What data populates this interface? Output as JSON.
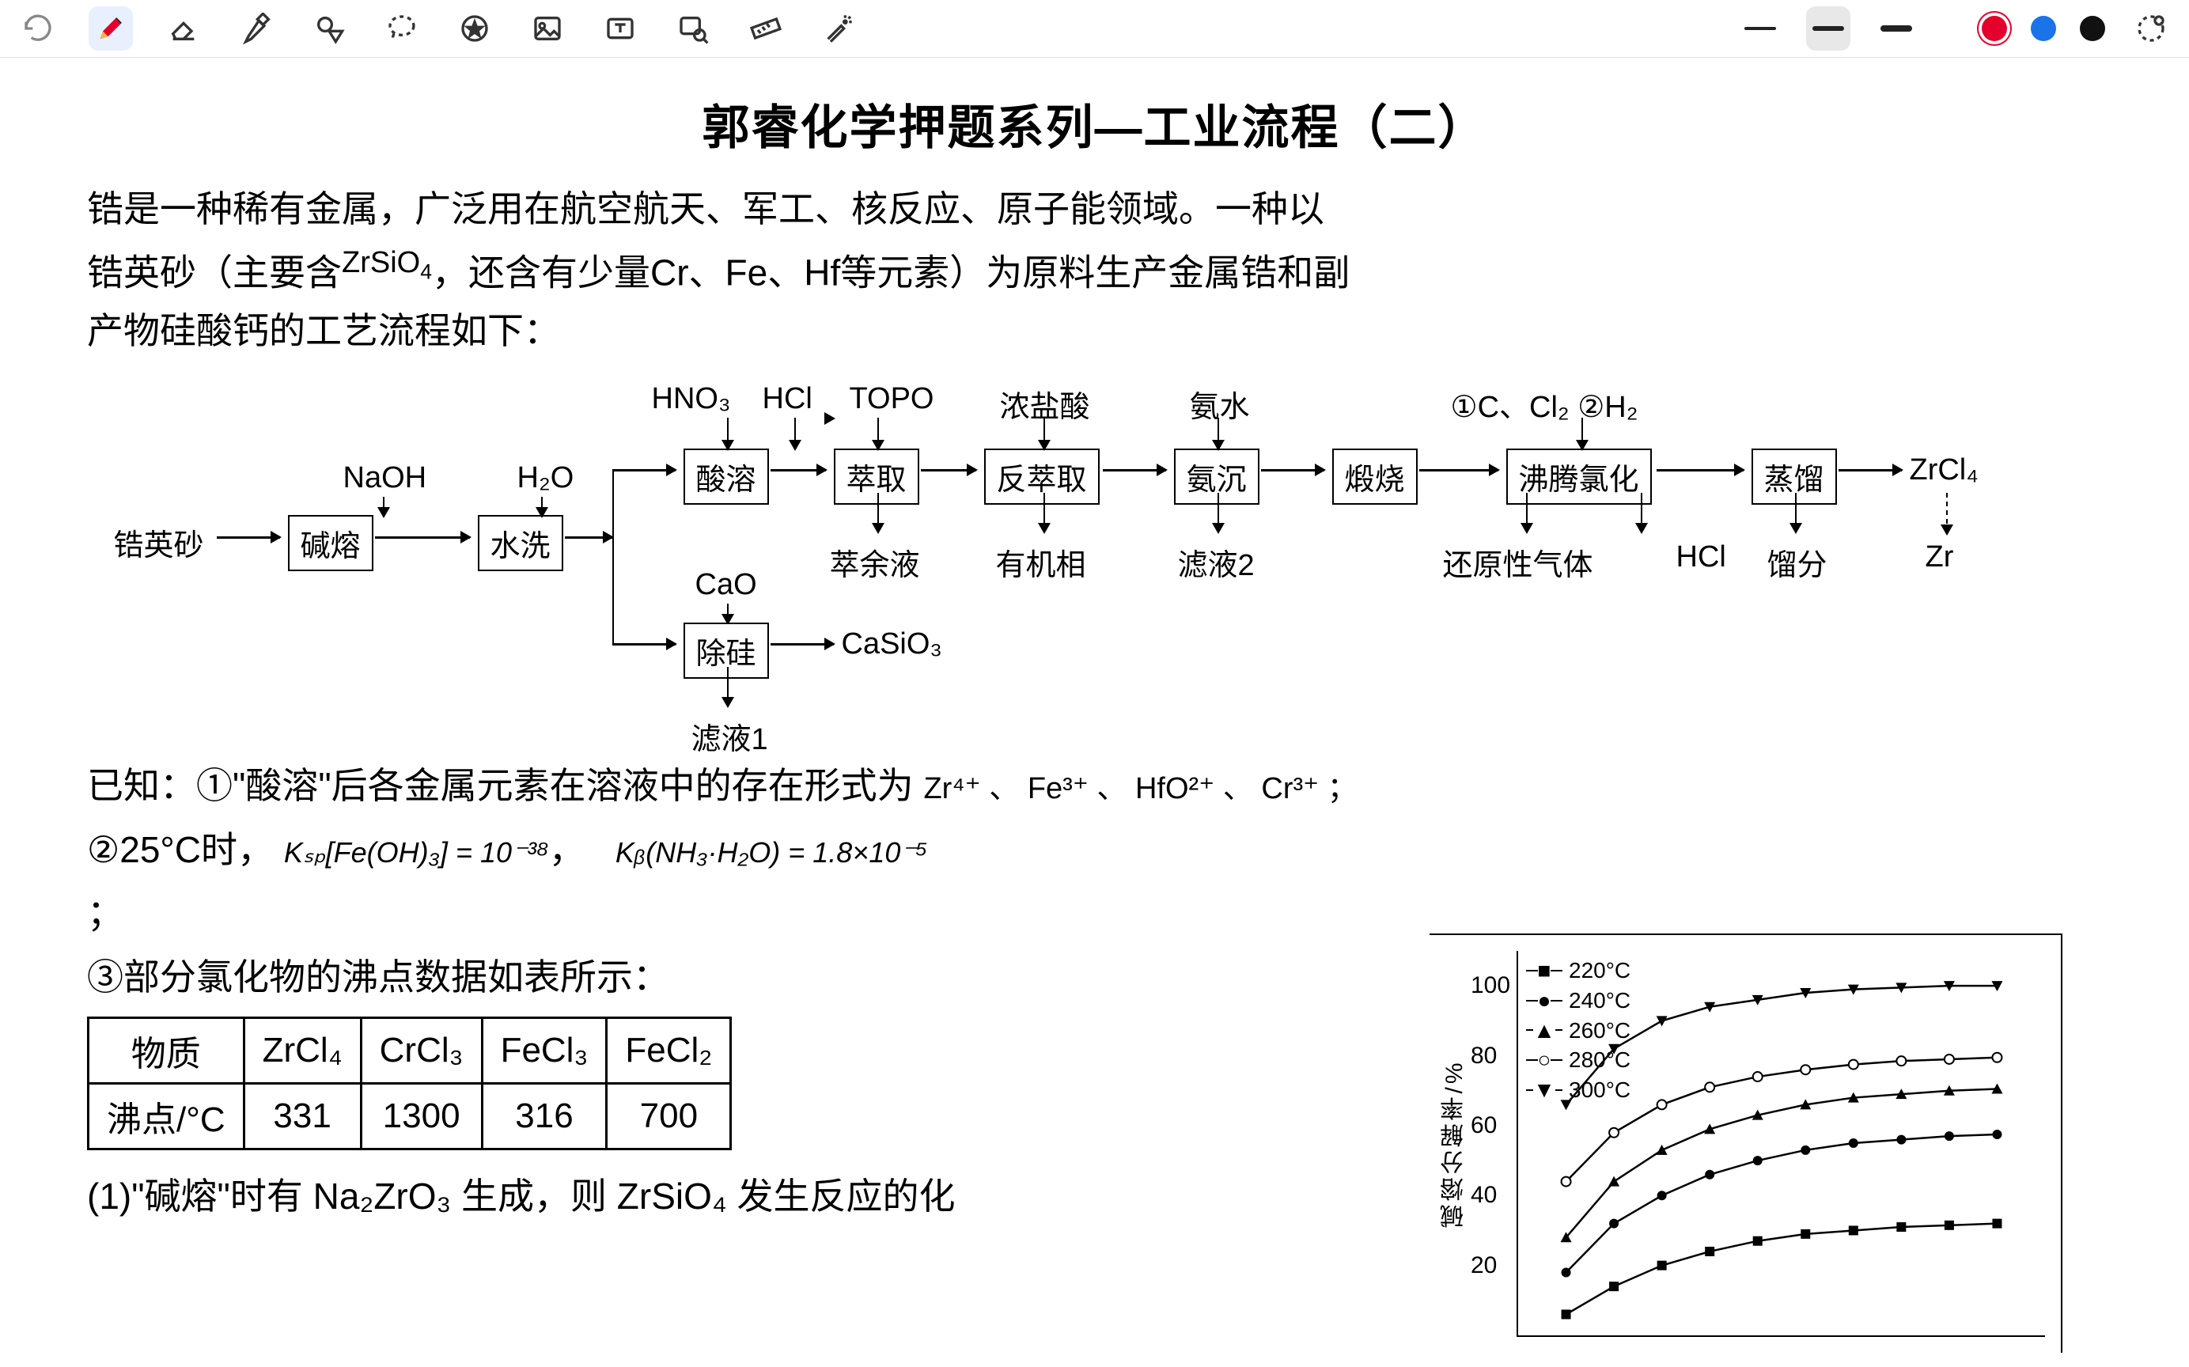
{
  "toolbar": {
    "undo": "undo",
    "pen": "pen",
    "eraser": "eraser",
    "highlighter": "highlighter",
    "shape": "shape",
    "lasso": "lasso",
    "favorites": "favorites",
    "image": "image",
    "text": "text",
    "insert_image": "insert-image",
    "ruler": "ruler",
    "laser": "laser",
    "thickness": [
      4,
      6,
      8
    ],
    "active_thickness_index": 1,
    "colors": [
      "#e4002b",
      "#1a73e8",
      "#111111"
    ],
    "add_color": "add-color"
  },
  "doc": {
    "title": "郭睿化学押题系列—工业流程（二）",
    "intro_1": "锆是一种稀有金属，广泛用在航空航天、军工、核反应、原子能领域。一种以",
    "intro_2a": "锆英砂（主要含",
    "intro_formula": "ZrSiO",
    "intro_sub": "4",
    "intro_2b": "，还含有少量Cr、Fe、Hf等元素）为原料生产金属锆和副",
    "intro_3": "产物硅酸钙的工艺流程如下：",
    "flow": {
      "start": "锆英砂",
      "naoh": "NaOH",
      "h2o": "H₂O",
      "b1": "碱熔",
      "b2": "水洗",
      "hno3": "HNO₃",
      "hcl": "HCl",
      "topo": "TOPO",
      "conc_hcl": "浓盐酸",
      "nh3": "氨水",
      "c_cl2_h2": "①C、Cl₂ ②H₂",
      "b3": "酸溶",
      "b4": "萃取",
      "b5": "反萃取",
      "b6": "氨沉",
      "b7": "煅烧",
      "b8": "沸腾氯化",
      "b9": "蒸馏",
      "zrcl4": "ZrCl₄",
      "zr": "Zr",
      "cao": "CaO",
      "b10": "除硅",
      "casio3": "CaSiO₃",
      "filtrate1": "滤液1",
      "residue": "萃余液",
      "organic": "有机相",
      "filtrate2": "滤液2",
      "reducing_gas": "还原性气体",
      "hcl_out": "HCl",
      "distillate": "馏分"
    },
    "known_label": "已知：",
    "k1a": "①\"酸溶\"后各金属元素在溶液中的存在形式为",
    "k1b": "Zr⁴⁺ 、 Fe³⁺ 、 HfO²⁺ 、 Cr³⁺ ；",
    "k2a": "②25°C时，",
    "ksp_expr": "Kₛₚ[Fe(OH)₃] = 10⁻³⁸",
    "kb_expr": "Kᵦ(NH₃·H₂O) = 1.8×10⁻⁵",
    "semicolon": "；",
    "k3": "③部分氯化物的沸点数据如表所示：",
    "table": {
      "h1": "物质",
      "h2": "ZrCl₄",
      "h3": "CrCl₃",
      "h4": "FeCl₃",
      "h5": "FeCl₂",
      "r1": "沸点/°C",
      "v1": "331",
      "v2": "1300",
      "v3": "316",
      "v4": "700"
    },
    "q1_partial": "(1)\"碱熔\"时有 Na₂ZrO₃ 生成，则 ZrSiO₄ 发生反应的化"
  },
  "chart": {
    "y_label": "碱熔分解率/%",
    "y_ticks": [
      20,
      40,
      60,
      80,
      100
    ],
    "ylim": [
      0,
      110
    ],
    "series": [
      {
        "label": "220°C",
        "marker": "■",
        "data": [
          [
            1,
            6
          ],
          [
            2,
            14
          ],
          [
            3,
            20
          ],
          [
            4,
            24
          ],
          [
            5,
            27
          ],
          [
            6,
            29
          ],
          [
            7,
            30
          ],
          [
            8,
            31
          ],
          [
            9,
            31.5
          ],
          [
            10,
            32
          ]
        ]
      },
      {
        "label": "240°C",
        "marker": "●",
        "data": [
          [
            1,
            18
          ],
          [
            2,
            32
          ],
          [
            3,
            40
          ],
          [
            4,
            46
          ],
          [
            5,
            50
          ],
          [
            6,
            53
          ],
          [
            7,
            55
          ],
          [
            8,
            56
          ],
          [
            9,
            57
          ],
          [
            10,
            57.5
          ]
        ]
      },
      {
        "label": "260°C",
        "marker": "▲",
        "data": [
          [
            1,
            28
          ],
          [
            2,
            44
          ],
          [
            3,
            53
          ],
          [
            4,
            59
          ],
          [
            5,
            63
          ],
          [
            6,
            66
          ],
          [
            7,
            68
          ],
          [
            8,
            69
          ],
          [
            9,
            70
          ],
          [
            10,
            70.5
          ]
        ]
      },
      {
        "label": "280°C",
        "marker": "○",
        "data": [
          [
            1,
            44
          ],
          [
            2,
            58
          ],
          [
            3,
            66
          ],
          [
            4,
            71
          ],
          [
            5,
            74
          ],
          [
            6,
            76
          ],
          [
            7,
            77.5
          ],
          [
            8,
            78.5
          ],
          [
            9,
            79
          ],
          [
            10,
            79.5
          ]
        ]
      },
      {
        "label": "300°C",
        "marker": "▼",
        "data": [
          [
            1,
            66
          ],
          [
            2,
            82
          ],
          [
            3,
            90
          ],
          [
            4,
            94
          ],
          [
            5,
            96
          ],
          [
            6,
            98
          ],
          [
            7,
            99
          ],
          [
            8,
            99.5
          ],
          [
            9,
            100
          ],
          [
            10,
            100
          ]
        ]
      }
    ],
    "xlim": [
      0,
      11
    ],
    "line_color": "#000000",
    "axis_color": "#000000",
    "background": "#ffffff",
    "font_size": 28
  }
}
